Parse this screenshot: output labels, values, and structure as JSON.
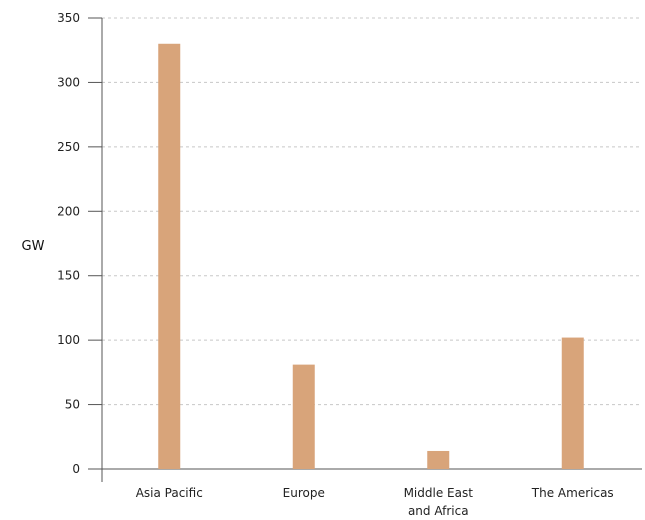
{
  "chart_data": {
    "type": "bar",
    "categories": [
      [
        "Asia Pacific"
      ],
      [
        "Europe"
      ],
      [
        "Middle East",
        "and Africa"
      ],
      [
        "The Americas"
      ]
    ],
    "values": [
      330,
      81,
      14,
      102
    ],
    "ylabel": "GW",
    "ylim": [
      0,
      350
    ],
    "yticks": [
      0,
      50,
      100,
      150,
      200,
      250,
      300,
      350
    ],
    "grid": true,
    "colors": {
      "bar": "#d8a47a",
      "grid": "#c8c8c8",
      "axis": "#555555"
    }
  }
}
